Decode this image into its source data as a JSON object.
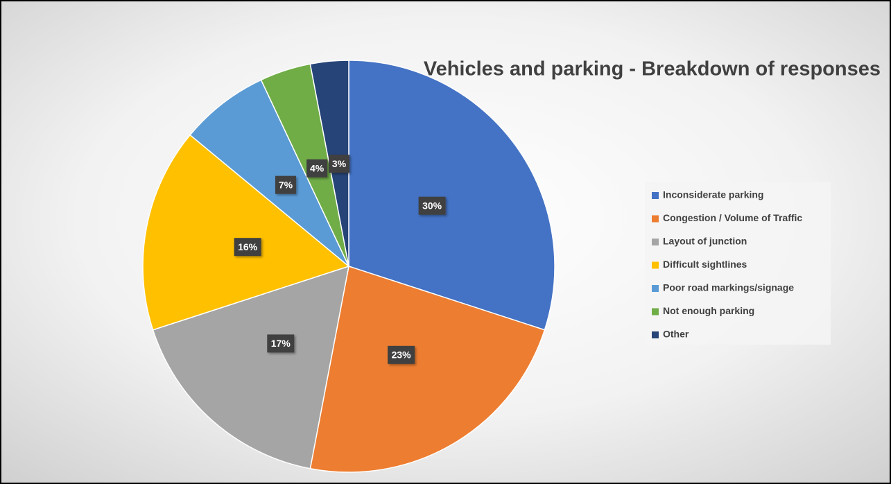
{
  "chart_data": {
    "type": "pie",
    "title": "Vehicles and parking - Breakdown of responses",
    "categories": [
      "Inconsiderate parking",
      "Congestion / Volume of Traffic",
      "Layout of junction",
      "Difficult sightlines",
      "Poor road markings/signage",
      "Not enough parking",
      "Other"
    ],
    "values": [
      30,
      23,
      17,
      16,
      7,
      4,
      3
    ],
    "value_labels": [
      "30%",
      "23%",
      "17%",
      "16%",
      "7%",
      "4%",
      "3%"
    ],
    "colors": [
      "#4472c4",
      "#ed7d31",
      "#a5a5a5",
      "#ffc000",
      "#5b9bd5",
      "#70ad47",
      "#264478"
    ],
    "legend": "right"
  }
}
